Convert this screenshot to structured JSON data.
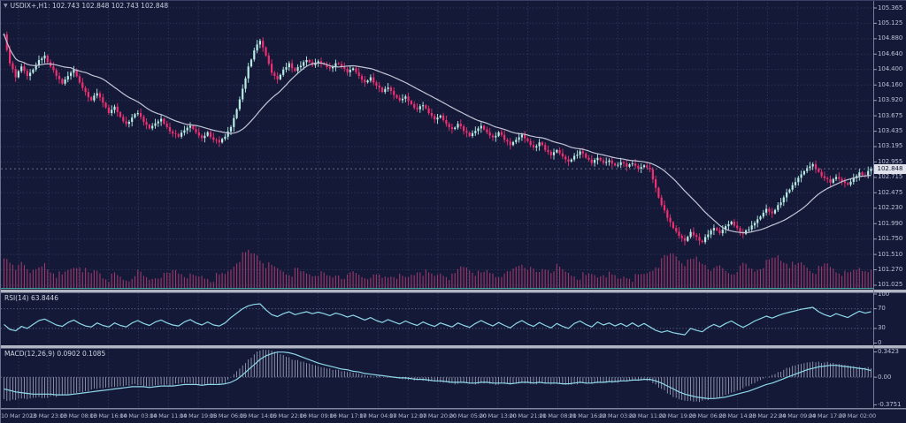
{
  "header": {
    "symbol_ohlc": "USDIX+,H1: 102.743 102.848 102.743 102.848",
    "dropdown_glyph": "▼"
  },
  "colors": {
    "background": "#141937",
    "grid": "#565d86",
    "bull": "#b6ece4",
    "bear": "#ef2f72",
    "volume": "#a63a6e",
    "teal_baseline": "#49c3b2",
    "ma": "#c2c5d6",
    "indicator": "#8ed8ea",
    "histogram": "#c9cde4",
    "separator": "#b2b5c4",
    "axis_text": "#b9c0d4",
    "price_box_bg": "#dfe2ea"
  },
  "price_axis": {
    "labels": [
      "105.365",
      "105.125",
      "104.880",
      "104.640",
      "104.400",
      "104.160",
      "103.920",
      "103.675",
      "103.435",
      "103.195",
      "102.955",
      "102.715",
      "102.475",
      "102.230",
      "101.990",
      "101.750",
      "101.510",
      "101.270",
      "101.025"
    ],
    "current_price_label": "102.848"
  },
  "time_axis": {
    "labels": [
      "10 Mar 2023",
      "10 Mar 23:00",
      "13 Mar 08:00",
      "13 Mar 16:00",
      "14 Mar 03:00",
      "14 Mar 11:00",
      "14 Mar 19:00",
      "15 Mar 06:00",
      "15 Mar 14:00",
      "15 Mar 22:00",
      "16 Mar 09:00",
      "16 Mar 17:00",
      "17 Mar 04:00",
      "17 Mar 12:00",
      "17 Mar 20:00",
      "20 Mar 05:00",
      "20 Mar 13:00",
      "20 Mar 21:00",
      "21 Mar 08:00",
      "21 Mar 16:00",
      "22 Mar 03:00",
      "22 Mar 11:00",
      "22 Mar 19:00",
      "23 Mar 06:00",
      "23 Mar 14:00",
      "23 Mar 22:00",
      "24 Mar 09:00",
      "24 Mar 17:00",
      "27 Mar 02:00"
    ]
  },
  "rsi_pane": {
    "label": "RSI(14) 63.8446",
    "axis_labels": [
      "100",
      "70",
      "30",
      "0"
    ],
    "axis_values": [
      100,
      70,
      30,
      0
    ],
    "levels": [
      70,
      30
    ]
  },
  "macd_pane": {
    "label": "MACD(12,26,9) 0.0902 0.1085",
    "axis_labels": [
      "0.3423",
      "0.00",
      "-0.3751"
    ],
    "axis_values": [
      0.3423,
      0,
      -0.3751
    ]
  },
  "chart_data": {
    "type": "candlestick",
    "symbol": "USDIX+",
    "timeframe": "H1",
    "ohlc_readout": {
      "open": 102.743,
      "high": 102.848,
      "low": 102.743,
      "close": 102.848
    },
    "current_price": 102.848,
    "price_axis_range": [
      101.025,
      105.365
    ],
    "price_tick_step": 0.24,
    "overlays": [
      "moving-average-line"
    ],
    "closes": [
      104.95,
      104.5,
      104.28,
      104.45,
      104.3,
      104.4,
      104.55,
      104.62,
      104.45,
      104.3,
      104.18,
      104.3,
      104.4,
      104.2,
      104.05,
      103.92,
      104.03,
      103.88,
      103.72,
      103.82,
      103.66,
      103.55,
      103.65,
      103.72,
      103.58,
      103.48,
      103.56,
      103.63,
      103.5,
      103.4,
      103.35,
      103.45,
      103.52,
      103.42,
      103.33,
      103.42,
      103.3,
      103.26,
      103.35,
      103.5,
      103.78,
      104.1,
      104.45,
      104.7,
      104.85,
      104.62,
      104.35,
      104.25,
      104.4,
      104.5,
      104.38,
      104.46,
      104.55,
      104.47,
      104.53,
      104.48,
      104.42,
      104.5,
      104.44,
      104.36,
      104.42,
      104.3,
      104.2,
      104.28,
      104.15,
      104.05,
      104.12,
      104.0,
      103.92,
      103.98,
      103.86,
      103.78,
      103.84,
      103.72,
      103.62,
      103.68,
      103.55,
      103.47,
      103.55,
      103.44,
      103.36,
      103.44,
      103.52,
      103.42,
      103.34,
      103.42,
      103.3,
      103.22,
      103.3,
      103.38,
      103.28,
      103.18,
      103.26,
      103.14,
      103.06,
      103.14,
      103.04,
      102.96,
      103.05,
      103.12,
      103.02,
      102.94,
      103.02,
      102.94,
      102.98,
      102.9,
      102.95,
      102.88,
      102.93,
      102.85,
      102.9,
      102.84,
      102.55,
      102.28,
      102.08,
      101.92,
      101.8,
      101.72,
      101.86,
      101.78,
      101.7,
      101.82,
      101.92,
      101.84,
      101.95,
      102.02,
      101.92,
      101.83,
      101.9,
      102.0,
      102.1,
      102.22,
      102.15,
      102.28,
      102.4,
      102.52,
      102.64,
      102.76,
      102.86,
      102.92,
      102.8,
      102.7,
      102.63,
      102.72,
      102.65,
      102.6,
      102.7,
      102.79,
      102.74,
      102.85
    ],
    "volume": [
      85,
      60,
      45,
      70,
      55,
      40,
      50,
      65,
      45,
      35,
      30,
      45,
      55,
      60,
      45,
      35,
      45,
      30,
      25,
      35,
      28,
      22,
      30,
      40,
      28,
      22,
      30,
      35,
      35,
      45,
      40,
      35,
      30,
      28,
      32,
      28,
      25,
      30,
      35,
      50,
      70,
      85,
      95,
      90,
      75,
      60,
      55,
      50,
      45,
      40,
      45,
      40,
      38,
      35,
      40,
      35,
      30,
      35,
      30,
      28,
      40,
      35,
      30,
      35,
      30,
      25,
      30,
      35,
      30,
      25,
      35,
      45,
      40,
      35,
      30,
      40,
      35,
      30,
      45,
      55,
      50,
      40,
      35,
      45,
      40,
      35,
      30,
      40,
      55,
      65,
      55,
      45,
      40,
      50,
      45,
      55,
      45,
      40,
      35,
      30,
      28,
      35,
      30,
      40,
      35,
      30,
      25,
      30,
      25,
      30,
      35,
      45,
      60,
      70,
      80,
      90,
      75,
      65,
      70,
      80,
      65,
      55,
      45,
      55,
      45,
      40,
      50,
      60,
      50,
      45,
      55,
      65,
      75,
      85,
      70,
      60,
      55,
      65,
      55,
      45,
      50,
      60,
      55,
      45,
      40,
      35,
      45,
      55,
      50,
      40
    ],
    "rsi": {
      "period": 14,
      "last_value": 63.8446,
      "range": [
        0,
        100
      ],
      "values": [
        38,
        28,
        25,
        34,
        30,
        38,
        46,
        49,
        43,
        37,
        34,
        42,
        47,
        40,
        35,
        33,
        41,
        36,
        33,
        41,
        36,
        33,
        41,
        46,
        40,
        36,
        43,
        47,
        41,
        37,
        35,
        43,
        48,
        41,
        37,
        43,
        37,
        35,
        41,
        52,
        61,
        70,
        76,
        79,
        80,
        68,
        58,
        54,
        60,
        64,
        58,
        61,
        64,
        60,
        63,
        60,
        56,
        61,
        58,
        53,
        57,
        52,
        47,
        52,
        46,
        42,
        48,
        43,
        39,
        45,
        40,
        36,
        43,
        38,
        34,
        41,
        37,
        33,
        41,
        36,
        32,
        40,
        46,
        40,
        35,
        42,
        36,
        31,
        40,
        46,
        39,
        34,
        42,
        36,
        31,
        40,
        34,
        30,
        40,
        45,
        38,
        33,
        43,
        37,
        41,
        35,
        40,
        34,
        41,
        34,
        40,
        33,
        26,
        22,
        25,
        21,
        19,
        17,
        30,
        26,
        23,
        32,
        38,
        33,
        40,
        45,
        38,
        32,
        38,
        45,
        50,
        55,
        51,
        56,
        60,
        63,
        66,
        69,
        71,
        73,
        64,
        58,
        54,
        60,
        56,
        52,
        59,
        65,
        61,
        64
      ]
    },
    "macd": {
      "params": "12,26,9",
      "last_main": 0.0902,
      "last_signal": 0.1085,
      "range": [
        -0.3751,
        0.3423
      ],
      "signal": [
        -0.16,
        -0.18,
        -0.2,
        -0.21,
        -0.22,
        -0.23,
        -0.23,
        -0.23,
        -0.23,
        -0.24,
        -0.24,
        -0.24,
        -0.23,
        -0.22,
        -0.21,
        -0.2,
        -0.19,
        -0.18,
        -0.17,
        -0.16,
        -0.15,
        -0.14,
        -0.13,
        -0.13,
        -0.13,
        -0.14,
        -0.13,
        -0.12,
        -0.12,
        -0.12,
        -0.11,
        -0.1,
        -0.1,
        -0.1,
        -0.11,
        -0.1,
        -0.1,
        -0.1,
        -0.09,
        -0.07,
        -0.03,
        0.03,
        0.1,
        0.17,
        0.24,
        0.29,
        0.32,
        0.34,
        0.34,
        0.33,
        0.31,
        0.28,
        0.25,
        0.22,
        0.19,
        0.17,
        0.15,
        0.13,
        0.11,
        0.1,
        0.08,
        0.07,
        0.05,
        0.04,
        0.03,
        0.02,
        0.01,
        0.0,
        -0.01,
        -0.01,
        -0.02,
        -0.03,
        -0.03,
        -0.04,
        -0.05,
        -0.05,
        -0.06,
        -0.07,
        -0.07,
        -0.07,
        -0.08,
        -0.08,
        -0.07,
        -0.07,
        -0.08,
        -0.08,
        -0.08,
        -0.09,
        -0.08,
        -0.07,
        -0.07,
        -0.08,
        -0.07,
        -0.08,
        -0.08,
        -0.08,
        -0.09,
        -0.09,
        -0.08,
        -0.07,
        -0.08,
        -0.08,
        -0.07,
        -0.07,
        -0.06,
        -0.06,
        -0.05,
        -0.05,
        -0.04,
        -0.04,
        -0.03,
        -0.03,
        -0.05,
        -0.08,
        -0.12,
        -0.16,
        -0.2,
        -0.23,
        -0.25,
        -0.27,
        -0.28,
        -0.29,
        -0.29,
        -0.28,
        -0.27,
        -0.25,
        -0.23,
        -0.21,
        -0.19,
        -0.16,
        -0.13,
        -0.1,
        -0.08,
        -0.05,
        -0.02,
        0.01,
        0.04,
        0.07,
        0.1,
        0.12,
        0.14,
        0.15,
        0.16,
        0.16,
        0.15,
        0.14,
        0.13,
        0.12,
        0.11,
        0.09
      ],
      "histogram": [
        -0.3,
        -0.32,
        -0.31,
        -0.29,
        -0.3,
        -0.28,
        -0.27,
        -0.28,
        -0.26,
        -0.27,
        -0.25,
        -0.24,
        -0.22,
        -0.2,
        -0.19,
        -0.17,
        -0.16,
        -0.15,
        -0.14,
        -0.13,
        -0.12,
        -0.11,
        -0.1,
        -0.11,
        -0.12,
        -0.13,
        -0.11,
        -0.1,
        -0.1,
        -0.11,
        -0.09,
        -0.08,
        -0.08,
        -0.09,
        -0.11,
        -0.09,
        -0.09,
        -0.1,
        -0.08,
        0.0,
        0.08,
        0.16,
        0.24,
        0.31,
        0.36,
        0.37,
        0.36,
        0.33,
        0.3,
        0.27,
        0.23,
        0.21,
        0.19,
        0.17,
        0.15,
        0.13,
        0.12,
        0.1,
        0.08,
        0.07,
        0.06,
        0.05,
        0.03,
        0.02,
        0.01,
        0.0,
        -0.01,
        -0.01,
        -0.02,
        -0.03,
        -0.03,
        -0.04,
        -0.05,
        -0.06,
        -0.06,
        -0.07,
        -0.07,
        -0.08,
        -0.09,
        -0.08,
        -0.09,
        -0.1,
        -0.08,
        -0.08,
        -0.09,
        -0.1,
        -0.09,
        -0.1,
        -0.09,
        -0.08,
        -0.08,
        -0.09,
        -0.08,
        -0.09,
        -0.1,
        -0.09,
        -0.1,
        -0.1,
        -0.09,
        -0.08,
        -0.09,
        -0.09,
        -0.08,
        -0.08,
        -0.07,
        -0.07,
        -0.06,
        -0.06,
        -0.05,
        -0.05,
        -0.04,
        -0.05,
        -0.1,
        -0.16,
        -0.22,
        -0.27,
        -0.3,
        -0.32,
        -0.32,
        -0.33,
        -0.32,
        -0.31,
        -0.29,
        -0.27,
        -0.24,
        -0.21,
        -0.18,
        -0.15,
        -0.12,
        -0.08,
        -0.04,
        0.0,
        0.03,
        0.07,
        0.1,
        0.13,
        0.16,
        0.18,
        0.2,
        0.21,
        0.21,
        0.2,
        0.19,
        0.18,
        0.17,
        0.16,
        0.15,
        0.14,
        0.13,
        0.12
      ]
    }
  }
}
